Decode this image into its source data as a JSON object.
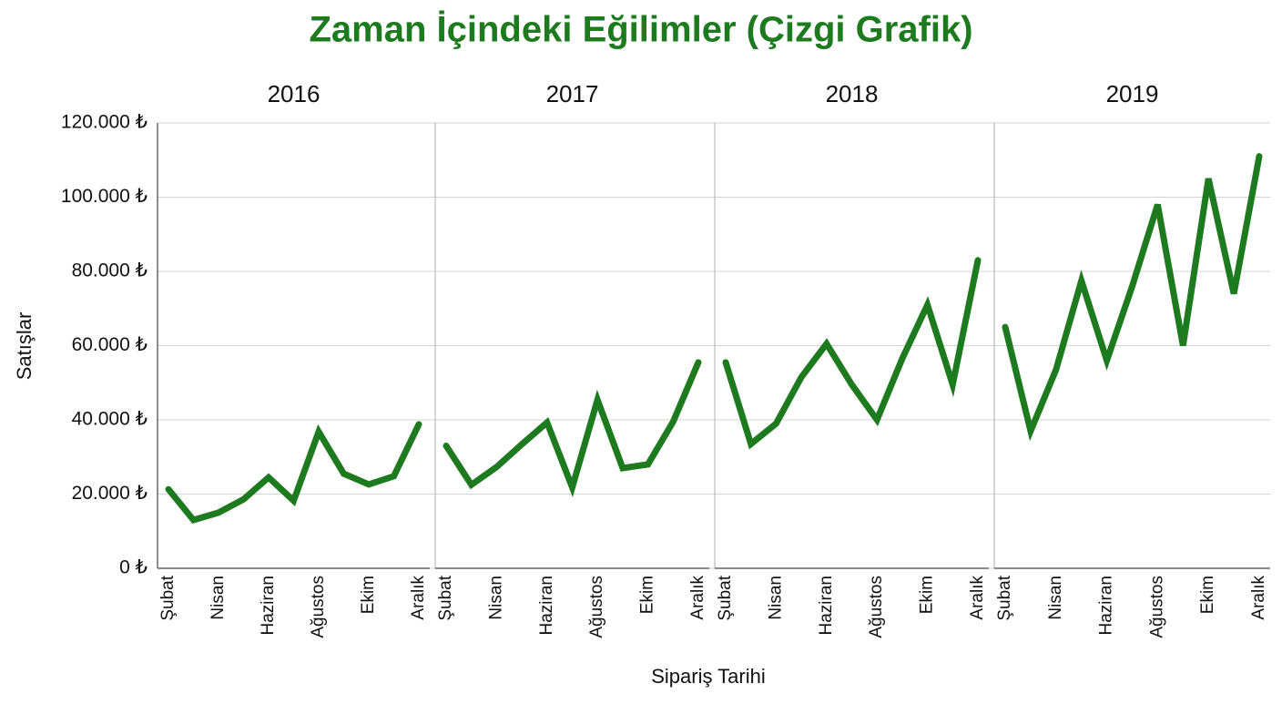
{
  "chart_data": {
    "type": "line",
    "title": "Zaman İçindeki Eğilimler (Çizgi Grafik)",
    "y_label": "Satışlar",
    "x_label": "Sipariş Tarihi",
    "color": "#1e7a1e",
    "grid": true,
    "categories": [
      "Şubat",
      null,
      "Nisan",
      null,
      "Haziran",
      null,
      "Ağustos",
      null,
      "Ekim",
      null,
      "Aralık"
    ],
    "ylim": [
      0,
      120000
    ],
    "yticks": [
      {
        "value": 0,
        "label": "0 ₺"
      },
      {
        "value": 20000,
        "label": "20.000 ₺"
      },
      {
        "value": 40000,
        "label": "40.000 ₺"
      },
      {
        "value": 60000,
        "label": "60.000 ₺"
      },
      {
        "value": 80000,
        "label": "80.000 ₺"
      },
      {
        "value": 100000,
        "label": "100.000 ₺"
      },
      {
        "value": 120000,
        "label": "120.000 ₺"
      }
    ],
    "panels": [
      {
        "title": "2016",
        "values": [
          21300,
          13000,
          15000,
          18600,
          24500,
          18200,
          36800,
          25500,
          22600,
          24800,
          38800
        ]
      },
      {
        "title": "2017",
        "values": [
          33000,
          22500,
          27300,
          33400,
          39300,
          21800,
          45400,
          27000,
          28000,
          39500,
          55500
        ]
      },
      {
        "title": "2018",
        "values": [
          55500,
          33500,
          39000,
          51500,
          60500,
          49500,
          40000,
          56500,
          71000,
          49500,
          83000
        ]
      },
      {
        "title": "2019",
        "values": [
          65000,
          37000,
          53500,
          77500,
          56000,
          76000,
          98000,
          60000,
          105000,
          74000,
          111000
        ]
      }
    ]
  }
}
